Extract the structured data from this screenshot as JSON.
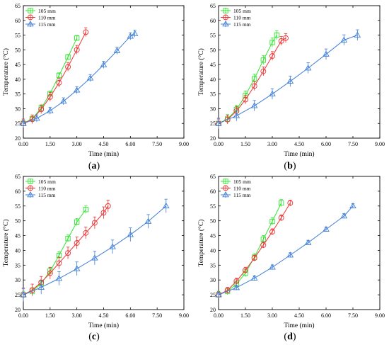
{
  "colors": {
    "s105": "#33e533",
    "s110": "#ee3333",
    "s115": "#3f7fd8"
  },
  "chart_data": [
    {
      "panel": "a",
      "caption_letter": "a",
      "type": "line",
      "xlabel": "Time (min)",
      "ylabel": "Temperature (°C)",
      "xlim": [
        0,
        9
      ],
      "ylim": [
        20,
        65
      ],
      "xticks": [
        "0.00",
        "1.50",
        "3.00",
        "4.50",
        "6.00",
        "7.50",
        "9.00"
      ],
      "yticks": [
        "20",
        "25",
        "30",
        "35",
        "40",
        "45",
        "50",
        "55",
        "60",
        "65"
      ],
      "legend_position": "top-left",
      "series": [
        {
          "name": "105 mm",
          "color": "#33e533",
          "marker": "square",
          "x": [
            0,
            0.5,
            1,
            1.5,
            2,
            2.5,
            3
          ],
          "y": [
            25,
            26.6,
            30.2,
            35.1,
            41.3,
            47.5,
            54
          ],
          "err": 0.9
        },
        {
          "name": "110 mm",
          "color": "#ee3333",
          "marker": "circle",
          "x": [
            0,
            0.5,
            1,
            1.5,
            2,
            2.5,
            3,
            3.5
          ],
          "y": [
            25,
            26.4,
            29.8,
            34,
            38.8,
            44.2,
            50,
            56
          ],
          "err": 1.5
        },
        {
          "name": "115 mm",
          "color": "#3f7fd8",
          "marker": "triangle",
          "x": [
            0,
            0.75,
            1.5,
            2.25,
            3,
            3.75,
            4.5,
            5.25,
            6,
            6.25
          ],
          "y": [
            25,
            26.7,
            29.3,
            32.5,
            36.3,
            40.4,
            44.9,
            49.7,
            54.6,
            55.5
          ],
          "err": 1.2
        }
      ]
    },
    {
      "panel": "b",
      "caption_letter": "b",
      "type": "line",
      "xlabel": "Time (min)",
      "ylabel": "Temperature (°C)",
      "xlim": [
        0,
        9
      ],
      "ylim": [
        20,
        65
      ],
      "xticks": [
        "0.00",
        "1.50",
        "3.00",
        "4.50",
        "6.00",
        "7.50",
        "9.00"
      ],
      "yticks": [
        "20",
        "25",
        "30",
        "35",
        "40",
        "45",
        "50",
        "55",
        "60",
        "65"
      ],
      "legend_position": "top-left",
      "series": [
        {
          "name": "105 mm",
          "color": "#33e533",
          "marker": "square",
          "x": [
            0,
            0.5,
            1,
            1.5,
            2,
            2.5,
            3,
            3.25
          ],
          "y": [
            25,
            26.5,
            29.7,
            34.5,
            40.2,
            46.5,
            52.5,
            55
          ],
          "err": 1.5
        },
        {
          "name": "110 mm",
          "color": "#ee3333",
          "marker": "circle",
          "x": [
            0,
            0.5,
            1,
            1.5,
            2,
            2.5,
            3,
            3.5,
            3.75
          ],
          "y": [
            25,
            26.3,
            29.2,
            33.1,
            37.7,
            42.7,
            47.9,
            53,
            54
          ],
          "err": 1.5
        },
        {
          "name": "115 mm",
          "color": "#3f7fd8",
          "marker": "triangle",
          "x": [
            0,
            1,
            2,
            3,
            4,
            5,
            6,
            7,
            7.75
          ],
          "y": [
            25,
            27.6,
            31,
            35,
            39.3,
            43.8,
            48.5,
            53.3,
            55
          ],
          "err": 1.8
        }
      ]
    },
    {
      "panel": "c",
      "caption_letter": "c",
      "type": "line",
      "xlabel": "Time (min)",
      "ylabel": "Temperature (°C)",
      "xlim": [
        0,
        9
      ],
      "ylim": [
        20,
        65
      ],
      "xticks": [
        "0.00",
        "1.50",
        "3.00",
        "4.50",
        "6.00",
        "7.50",
        "9.00"
      ],
      "yticks": [
        "20",
        "25",
        "30",
        "35",
        "40",
        "45",
        "50",
        "55",
        "60",
        "65"
      ],
      "legend_position": "top-left",
      "series": [
        {
          "name": "105 mm",
          "color": "#33e533",
          "marker": "square",
          "x": [
            0,
            0.5,
            1,
            1.5,
            2,
            2.5,
            3,
            3.5
          ],
          "y": [
            25,
            26.2,
            28.8,
            33,
            38.3,
            44,
            49.6,
            53.8
          ],
          "err": 1.2
        },
        {
          "name": "110 mm",
          "color": "#ee3333",
          "marker": "circle",
          "x": [
            0,
            0.5,
            1,
            1.5,
            2,
            2.5,
            3,
            3.5,
            4,
            4.5,
            4.75
          ],
          "y": [
            25,
            26.6,
            29.2,
            32.3,
            35.7,
            39.1,
            42.5,
            45.9,
            49.3,
            52.7,
            55
          ],
          "err": 2.0
        },
        {
          "name": "115 mm",
          "color": "#3f7fd8",
          "marker": "triangle",
          "x": [
            0,
            1,
            2,
            3,
            4,
            5,
            6,
            7,
            8
          ],
          "y": [
            25,
            27.5,
            30.5,
            33.8,
            37.4,
            41.2,
            45.3,
            49.8,
            55
          ],
          "err": 2.3
        }
      ]
    },
    {
      "panel": "d",
      "caption_letter": "d",
      "type": "line",
      "xlabel": "Time (min)",
      "ylabel": "Temperature (°C)",
      "xlim": [
        0,
        9
      ],
      "ylim": [
        20,
        65
      ],
      "xticks": [
        "0.00",
        "1.50",
        "3.00",
        "4.50",
        "6.00",
        "7.50",
        "9.00"
      ],
      "yticks": [
        "20",
        "25",
        "30",
        "35",
        "40",
        "45",
        "50",
        "55",
        "60",
        "65"
      ],
      "legend_position": "top-left",
      "series": [
        {
          "name": "105 mm",
          "color": "#33e533",
          "marker": "square",
          "x": [
            0,
            0.5,
            1,
            1.5,
            2,
            2.5,
            3,
            3.5
          ],
          "y": [
            25,
            26.2,
            28.6,
            32.3,
            37.7,
            43.8,
            49.8,
            56
          ],
          "err": 1.2
        },
        {
          "name": "110 mm",
          "color": "#ee3333",
          "marker": "circle",
          "x": [
            0,
            0.5,
            1,
            1.5,
            2,
            2.5,
            3,
            3.5,
            4
          ],
          "y": [
            25,
            26.5,
            29.6,
            33.3,
            37.4,
            41.8,
            46.3,
            51,
            56
          ],
          "err": 1.0
        },
        {
          "name": "115 mm",
          "color": "#3f7fd8",
          "marker": "triangle",
          "x": [
            0,
            1,
            2,
            3,
            4,
            5,
            6,
            7,
            7.5
          ],
          "y": [
            25,
            27.4,
            30.6,
            34.3,
            38.4,
            42.6,
            47.1,
            51.6,
            55
          ],
          "err": 0.8
        }
      ]
    }
  ]
}
